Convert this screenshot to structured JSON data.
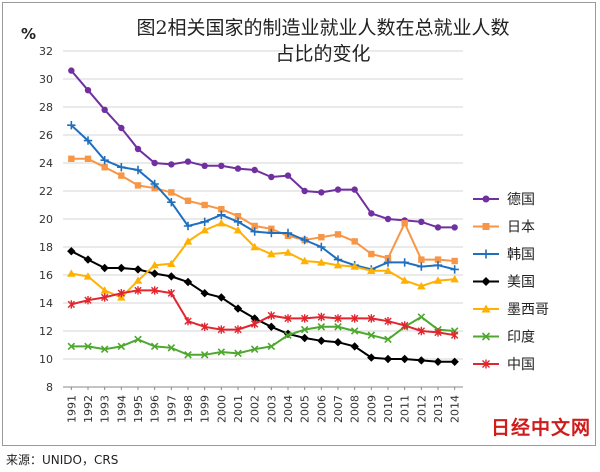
{
  "chart_data": {
    "type": "line",
    "title_lines": [
      "图2相关国家的制造业就业人数在总就业人数",
      "占比的变化"
    ],
    "ylabel": "%",
    "ylim": [
      8,
      32
    ],
    "yticks": [
      8,
      10,
      12,
      14,
      16,
      18,
      20,
      22,
      24,
      26,
      28,
      30,
      32
    ],
    "x": [
      "1991",
      "1992",
      "1993",
      "1994",
      "1995",
      "1996",
      "1997",
      "1998",
      "1999",
      "2000",
      "2001",
      "2002",
      "2003",
      "2004",
      "2005",
      "2006",
      "2007",
      "2008",
      "2009",
      "2010",
      "2011",
      "2012",
      "2013",
      "2014"
    ],
    "grid": true,
    "legend_position": "right",
    "series": [
      {
        "name": "德国",
        "color": "#7030a0",
        "marker": "circle",
        "values": [
          30.6,
          29.2,
          27.8,
          26.5,
          25.0,
          24.0,
          23.9,
          24.1,
          23.8,
          23.8,
          23.6,
          23.5,
          23.0,
          23.1,
          22.0,
          21.9,
          22.1,
          22.1,
          20.4,
          20.0,
          19.9,
          19.8,
          19.4,
          19.4
        ]
      },
      {
        "name": "日本",
        "color": "#f79646",
        "marker": "square",
        "values": [
          24.3,
          24.3,
          23.7,
          23.1,
          22.4,
          22.2,
          21.9,
          21.3,
          21.0,
          20.7,
          20.2,
          19.5,
          19.3,
          18.8,
          18.5,
          18.7,
          18.9,
          18.4,
          17.5,
          17.2,
          19.7,
          17.1,
          17.1,
          17.0
        ]
      },
      {
        "name": "韩国",
        "color": "#1f6fbf",
        "marker": "plus",
        "values": [
          26.7,
          25.6,
          24.2,
          23.7,
          23.5,
          22.5,
          21.2,
          19.5,
          19.8,
          20.3,
          19.8,
          19.1,
          19.0,
          19.0,
          18.5,
          18.0,
          17.1,
          16.7,
          16.4,
          16.9,
          16.9,
          16.6,
          16.7,
          16.4
        ]
      },
      {
        "name": "美国",
        "color": "#000000",
        "marker": "diamond",
        "values": [
          17.7,
          17.1,
          16.5,
          16.5,
          16.4,
          16.1,
          15.9,
          15.5,
          14.7,
          14.4,
          13.6,
          12.9,
          12.3,
          11.8,
          11.5,
          11.3,
          11.2,
          10.9,
          10.1,
          10.0,
          10.0,
          9.9,
          9.8,
          9.8
        ]
      },
      {
        "name": "墨西哥",
        "color": "#ffb000",
        "marker": "triangle",
        "values": [
          16.1,
          15.9,
          14.9,
          14.4,
          15.6,
          16.7,
          16.8,
          18.4,
          19.2,
          19.7,
          19.2,
          18.0,
          17.5,
          17.6,
          17.0,
          16.9,
          16.7,
          16.6,
          16.3,
          16.3,
          15.6,
          15.2,
          15.6,
          15.7
        ]
      },
      {
        "name": "印度",
        "color": "#4ea72e",
        "marker": "x",
        "values": [
          10.9,
          10.9,
          10.7,
          10.9,
          11.4,
          10.9,
          10.8,
          10.3,
          10.3,
          10.5,
          10.4,
          10.7,
          10.9,
          11.7,
          12.1,
          12.3,
          12.3,
          12.0,
          11.7,
          11.4,
          12.3,
          13.0,
          12.1,
          12.0
        ]
      },
      {
        "name": "中国",
        "color": "#e0262e",
        "marker": "asterisk",
        "values": [
          13.9,
          14.2,
          14.4,
          14.7,
          14.9,
          14.9,
          14.7,
          12.7,
          12.3,
          12.1,
          12.1,
          12.5,
          13.1,
          12.9,
          12.9,
          13.0,
          12.9,
          12.9,
          12.9,
          12.7,
          12.4,
          12.0,
          11.9,
          11.7
        ]
      }
    ]
  },
  "source_text": "来源：UNIDO，CRS",
  "watermark_text": "日经中文网"
}
